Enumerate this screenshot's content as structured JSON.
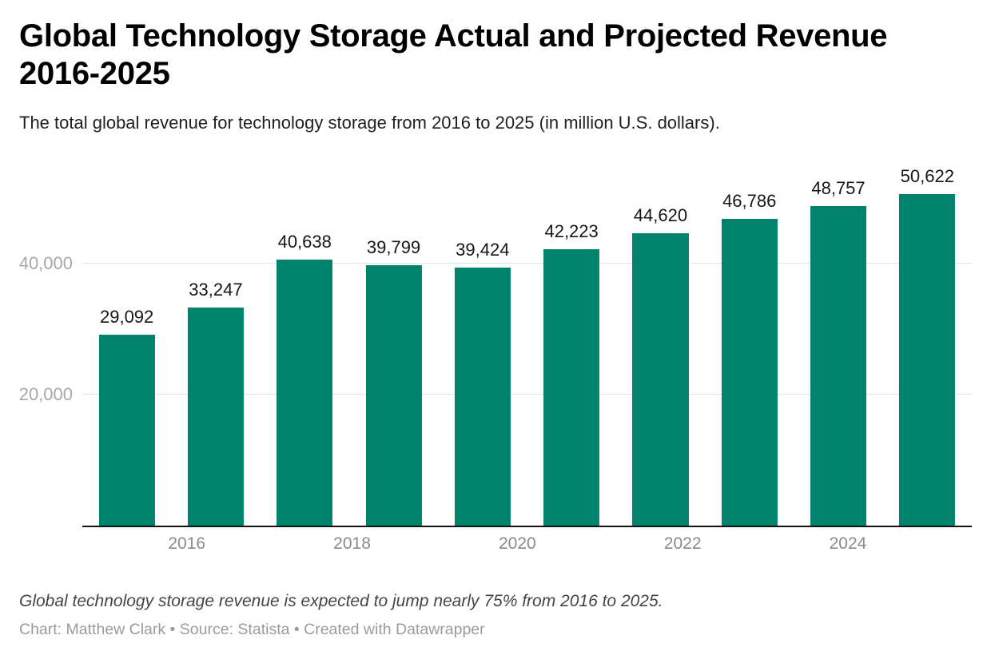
{
  "header": {
    "title_line1": "Global Technology Storage Actual and Projected Revenue",
    "title_line2": "2016-2025",
    "subtitle": "The total global revenue for technology storage from 2016 to 2025 (in million U.S. dollars)."
  },
  "chart_data": {
    "type": "bar",
    "categories": [
      "2016",
      "2017",
      "2018",
      "2019",
      "2020",
      "2021",
      "2022",
      "2023",
      "2024",
      "2025"
    ],
    "values": [
      29092,
      33247,
      40638,
      39799,
      39424,
      42223,
      44620,
      46786,
      48757,
      50622
    ],
    "value_labels": [
      "29,092",
      "33,247",
      "40,638",
      "39,799",
      "39,424",
      "42,223",
      "44,620",
      "46,786",
      "48,757",
      "50,622"
    ],
    "x_tick_labels": [
      "2016",
      "2018",
      "2020",
      "2022",
      "2024"
    ],
    "y_ticks": [
      {
        "value": 20000,
        "label": "20,000"
      },
      {
        "value": 40000,
        "label": "40,000"
      }
    ],
    "ylim": [
      0,
      57300
    ],
    "grid": "horizontal",
    "legend": "none",
    "bar_color": "#00836c",
    "title": "Global Technology Storage Actual and Projected Revenue 2016-2025",
    "xlabel": "",
    "ylabel": ""
  },
  "footer": {
    "note": "Global technology storage revenue is expected to jump nearly 75% from 2016 to 2025.",
    "byline": "Chart: Matthew Clark • Source: Statista • Created with Datawrapper"
  }
}
